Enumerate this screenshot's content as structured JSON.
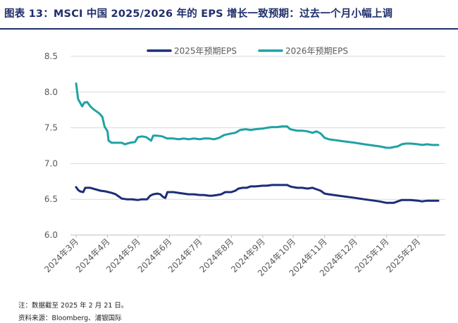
{
  "title": "图表 13：MSCI 中国 2025/2026 年的 EPS 增长一致预期：过去一个月小幅上调",
  "note": "注：数据截至 2025 年 2 月 21 日。",
  "source": "资料来源：Bloomberg、浦银国际",
  "chart_data": {
    "type": "line",
    "title": "",
    "xlabel": "",
    "ylabel": "",
    "ylim": [
      6.0,
      8.5
    ],
    "yticks": [
      "6.0",
      "6.5",
      "7.0",
      "7.5",
      "8.0",
      "8.5"
    ],
    "xlim": [
      "2024-03-01",
      "2025-02-21"
    ],
    "xticks": [
      {
        "date": "2024-03-01",
        "label": "2024年3月"
      },
      {
        "date": "2024-04-01",
        "label": "2024年4月"
      },
      {
        "date": "2024-05-01",
        "label": "2024年5月"
      },
      {
        "date": "2024-06-01",
        "label": "2024年6月"
      },
      {
        "date": "2024-07-01",
        "label": "2024年7月"
      },
      {
        "date": "2024-08-01",
        "label": "2024年8月"
      },
      {
        "date": "2024-09-01",
        "label": "2024年9月"
      },
      {
        "date": "2024-10-01",
        "label": "2024年10月"
      },
      {
        "date": "2024-11-01",
        "label": "2024年11月"
      },
      {
        "date": "2024-12-01",
        "label": "2024年12月"
      },
      {
        "date": "2025-01-01",
        "label": "2025年1月"
      },
      {
        "date": "2025-02-01",
        "label": "2025年2月"
      }
    ],
    "grid": true,
    "legend_position": "top",
    "series": [
      {
        "name": "2025年预期EPS",
        "color": "#1c2d78",
        "points": [
          [
            "2024-03-01",
            6.67
          ],
          [
            "2024-03-03",
            6.63
          ],
          [
            "2024-03-05",
            6.61
          ],
          [
            "2024-03-08",
            6.6
          ],
          [
            "2024-03-10",
            6.66
          ],
          [
            "2024-03-15",
            6.66
          ],
          [
            "2024-03-20",
            6.64
          ],
          [
            "2024-03-25",
            6.62
          ],
          [
            "2024-03-30",
            6.61
          ],
          [
            "2024-04-05",
            6.59
          ],
          [
            "2024-04-09",
            6.57
          ],
          [
            "2024-04-12",
            6.54
          ],
          [
            "2024-04-15",
            6.51
          ],
          [
            "2024-04-20",
            6.5
          ],
          [
            "2024-04-25",
            6.5
          ],
          [
            "2024-05-01",
            6.49
          ],
          [
            "2024-05-05",
            6.5
          ],
          [
            "2024-05-10",
            6.5
          ],
          [
            "2024-05-13",
            6.55
          ],
          [
            "2024-05-16",
            6.57
          ],
          [
            "2024-05-20",
            6.58
          ],
          [
            "2024-05-23",
            6.57
          ],
          [
            "2024-05-26",
            6.53
          ],
          [
            "2024-05-28",
            6.52
          ],
          [
            "2024-05-30",
            6.6
          ],
          [
            "2024-06-05",
            6.6
          ],
          [
            "2024-06-10",
            6.59
          ],
          [
            "2024-06-15",
            6.58
          ],
          [
            "2024-06-20",
            6.57
          ],
          [
            "2024-06-25",
            6.57
          ],
          [
            "2024-07-01",
            6.56
          ],
          [
            "2024-07-05",
            6.56
          ],
          [
            "2024-07-10",
            6.55
          ],
          [
            "2024-07-13",
            6.55
          ],
          [
            "2024-07-18",
            6.56
          ],
          [
            "2024-07-22",
            6.57
          ],
          [
            "2024-07-26",
            6.6
          ],
          [
            "2024-08-01",
            6.6
          ],
          [
            "2024-08-05",
            6.62
          ],
          [
            "2024-08-08",
            6.65
          ],
          [
            "2024-08-12",
            6.66
          ],
          [
            "2024-08-16",
            6.66
          ],
          [
            "2024-08-20",
            6.68
          ],
          [
            "2024-08-25",
            6.68
          ],
          [
            "2024-09-01",
            6.69
          ],
          [
            "2024-09-05",
            6.69
          ],
          [
            "2024-09-10",
            6.7
          ],
          [
            "2024-09-15",
            6.7
          ],
          [
            "2024-09-20",
            6.7
          ],
          [
            "2024-09-25",
            6.7
          ],
          [
            "2024-09-28",
            6.68
          ],
          [
            "2024-10-01",
            6.67
          ],
          [
            "2024-10-05",
            6.66
          ],
          [
            "2024-10-10",
            6.66
          ],
          [
            "2024-10-15",
            6.65
          ],
          [
            "2024-10-20",
            6.66
          ],
          [
            "2024-10-24",
            6.64
          ],
          [
            "2024-10-28",
            6.62
          ],
          [
            "2024-11-01",
            6.58
          ],
          [
            "2024-11-05",
            6.57
          ],
          [
            "2024-11-10",
            6.56
          ],
          [
            "2024-11-20",
            6.54
          ],
          [
            "2024-12-01",
            6.52
          ],
          [
            "2024-12-10",
            6.5
          ],
          [
            "2024-12-20",
            6.48
          ],
          [
            "2024-12-25",
            6.47
          ],
          [
            "2025-01-01",
            6.45
          ],
          [
            "2025-01-05",
            6.45
          ],
          [
            "2025-01-08",
            6.45
          ],
          [
            "2025-01-12",
            6.47
          ],
          [
            "2025-01-16",
            6.49
          ],
          [
            "2025-01-20",
            6.49
          ],
          [
            "2025-01-25",
            6.49
          ],
          [
            "2025-02-01",
            6.48
          ],
          [
            "2025-02-05",
            6.47
          ],
          [
            "2025-02-10",
            6.48
          ],
          [
            "2025-02-15",
            6.48
          ],
          [
            "2025-02-21",
            6.48
          ]
        ]
      },
      {
        "name": "2026年预期EPS",
        "color": "#1fa2a5",
        "points": [
          [
            "2024-03-01",
            8.12
          ],
          [
            "2024-03-03",
            7.9
          ],
          [
            "2024-03-05",
            7.85
          ],
          [
            "2024-03-07",
            7.8
          ],
          [
            "2024-03-09",
            7.85
          ],
          [
            "2024-03-12",
            7.86
          ],
          [
            "2024-03-15",
            7.8
          ],
          [
            "2024-03-18",
            7.76
          ],
          [
            "2024-03-21",
            7.73
          ],
          [
            "2024-03-24",
            7.7
          ],
          [
            "2024-03-27",
            7.65
          ],
          [
            "2024-03-29",
            7.52
          ],
          [
            "2024-04-01",
            7.45
          ],
          [
            "2024-04-02",
            7.32
          ],
          [
            "2024-04-05",
            7.29
          ],
          [
            "2024-04-10",
            7.29
          ],
          [
            "2024-04-15",
            7.29
          ],
          [
            "2024-04-18",
            7.27
          ],
          [
            "2024-04-23",
            7.29
          ],
          [
            "2024-04-28",
            7.3
          ],
          [
            "2024-05-01",
            7.37
          ],
          [
            "2024-05-05",
            7.38
          ],
          [
            "2024-05-09",
            7.37
          ],
          [
            "2024-05-12",
            7.34
          ],
          [
            "2024-05-14",
            7.32
          ],
          [
            "2024-05-16",
            7.39
          ],
          [
            "2024-05-20",
            7.39
          ],
          [
            "2024-05-25",
            7.38
          ],
          [
            "2024-05-28",
            7.36
          ],
          [
            "2024-05-30",
            7.35
          ],
          [
            "2024-06-05",
            7.35
          ],
          [
            "2024-06-10",
            7.34
          ],
          [
            "2024-06-15",
            7.35
          ],
          [
            "2024-06-20",
            7.34
          ],
          [
            "2024-06-25",
            7.35
          ],
          [
            "2024-07-01",
            7.34
          ],
          [
            "2024-07-05",
            7.35
          ],
          [
            "2024-07-10",
            7.35
          ],
          [
            "2024-07-15",
            7.34
          ],
          [
            "2024-07-20",
            7.36
          ],
          [
            "2024-07-25",
            7.4
          ],
          [
            "2024-08-01",
            7.42
          ],
          [
            "2024-08-05",
            7.43
          ],
          [
            "2024-08-10",
            7.47
          ],
          [
            "2024-08-15",
            7.48
          ],
          [
            "2024-08-20",
            7.47
          ],
          [
            "2024-08-25",
            7.48
          ],
          [
            "2024-09-01",
            7.49
          ],
          [
            "2024-09-05",
            7.5
          ],
          [
            "2024-09-10",
            7.51
          ],
          [
            "2024-09-15",
            7.51
          ],
          [
            "2024-09-20",
            7.52
          ],
          [
            "2024-09-25",
            7.52
          ],
          [
            "2024-09-28",
            7.48
          ],
          [
            "2024-10-01",
            7.47
          ],
          [
            "2024-10-05",
            7.46
          ],
          [
            "2024-10-10",
            7.46
          ],
          [
            "2024-10-15",
            7.45
          ],
          [
            "2024-10-20",
            7.43
          ],
          [
            "2024-10-24",
            7.45
          ],
          [
            "2024-10-28",
            7.42
          ],
          [
            "2024-11-01",
            7.36
          ],
          [
            "2024-11-05",
            7.34
          ],
          [
            "2024-11-10",
            7.33
          ],
          [
            "2024-11-20",
            7.31
          ],
          [
            "2024-12-01",
            7.29
          ],
          [
            "2024-12-10",
            7.27
          ],
          [
            "2024-12-20",
            7.25
          ],
          [
            "2024-12-25",
            7.24
          ],
          [
            "2025-01-01",
            7.22
          ],
          [
            "2025-01-05",
            7.22
          ],
          [
            "2025-01-08",
            7.23
          ],
          [
            "2025-01-12",
            7.24
          ],
          [
            "2025-01-16",
            7.27
          ],
          [
            "2025-01-20",
            7.28
          ],
          [
            "2025-01-25",
            7.28
          ],
          [
            "2025-02-01",
            7.27
          ],
          [
            "2025-02-05",
            7.26
          ],
          [
            "2025-02-10",
            7.27
          ],
          [
            "2025-02-15",
            7.26
          ],
          [
            "2025-02-21",
            7.26
          ]
        ]
      }
    ]
  }
}
